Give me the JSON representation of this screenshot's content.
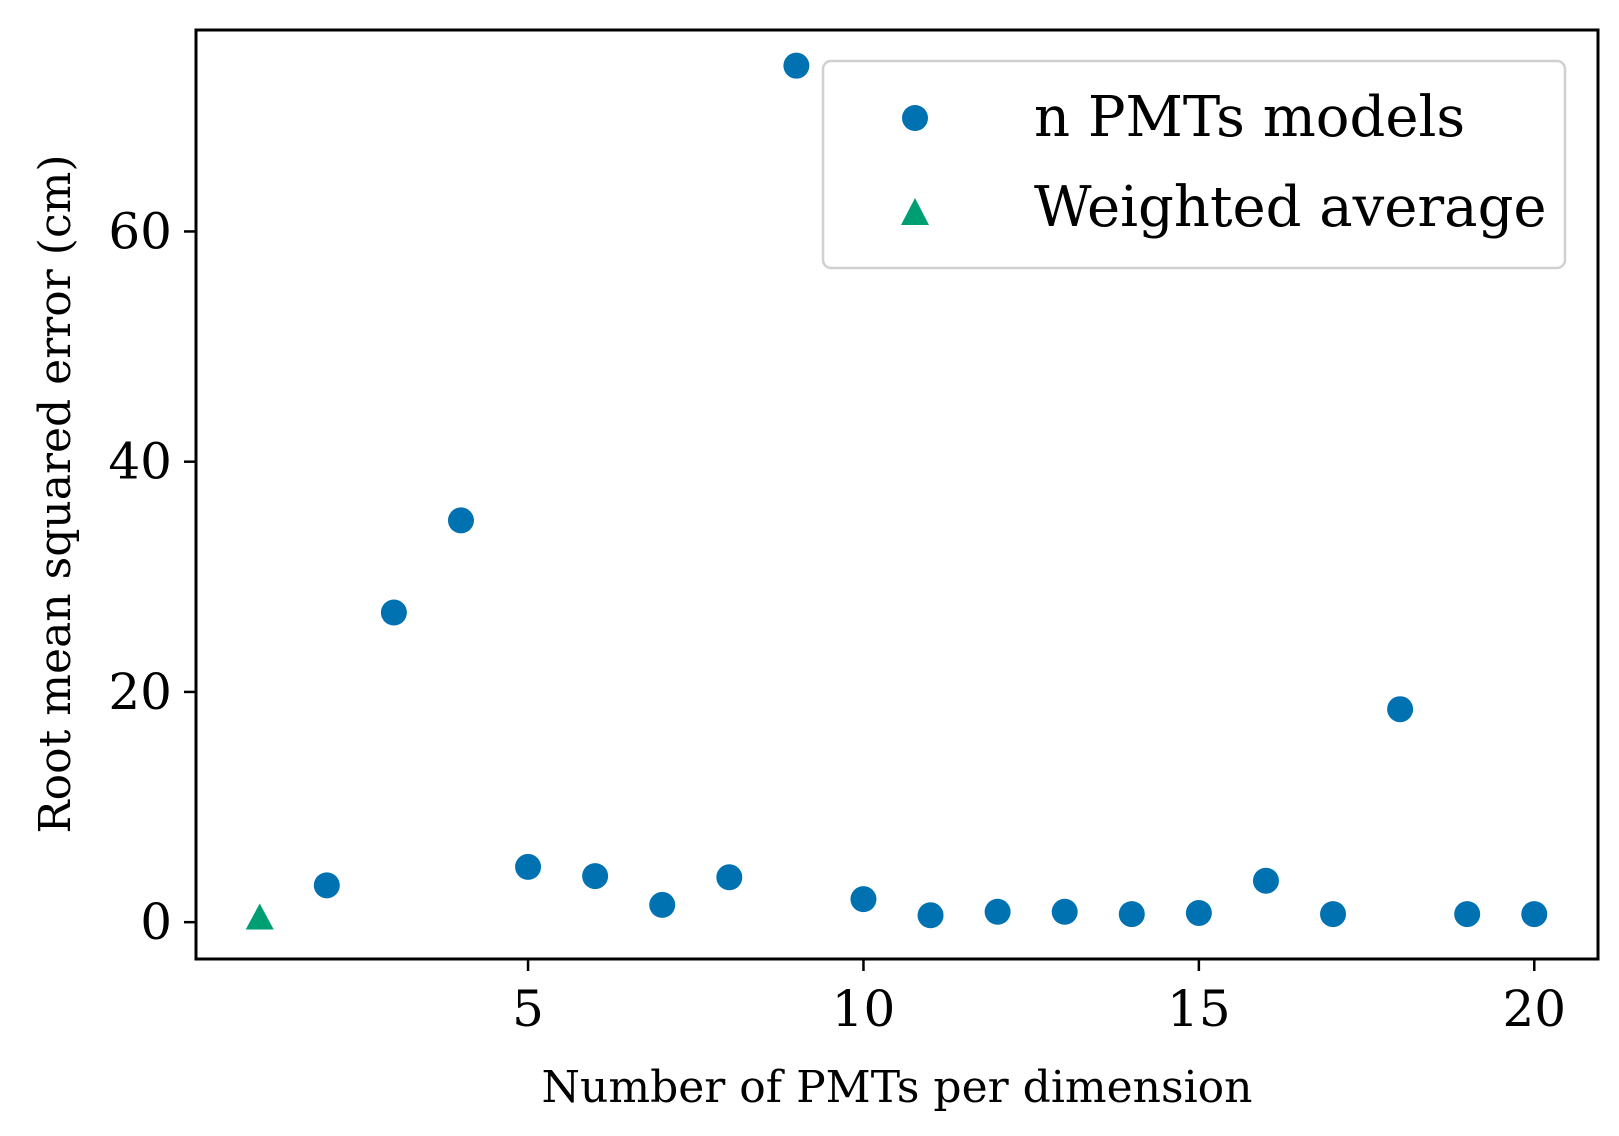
{
  "chart_data": {
    "type": "scatter",
    "title": "",
    "xlabel": "Number of PMTs per dimension",
    "ylabel": "Root mean squared error (cm)",
    "xlim": [
      0.05,
      20.95
    ],
    "ylim": [
      -3.2,
      77.5
    ],
    "xticks": [
      5,
      10,
      15,
      20
    ],
    "xtick_labels": [
      "5",
      "10",
      "15",
      "20"
    ],
    "yticks": [
      0,
      20,
      40,
      60
    ],
    "ytick_labels": [
      "0",
      "20",
      "40",
      "60"
    ],
    "grid": false,
    "legend_position": "top-right",
    "series": [
      {
        "name": "n PMTs models",
        "marker": "circle",
        "color": "#0072b2",
        "x": [
          2,
          3,
          4,
          5,
          6,
          7,
          8,
          9,
          10,
          11,
          12,
          13,
          14,
          15,
          16,
          17,
          18,
          19,
          20
        ],
        "y": [
          3.2,
          26.9,
          34.9,
          4.8,
          4.0,
          1.5,
          3.9,
          74.4,
          2.0,
          0.6,
          0.9,
          0.9,
          0.7,
          0.8,
          3.6,
          0.7,
          18.5,
          0.7,
          0.7
        ]
      },
      {
        "name": "Weighted average",
        "marker": "triangle",
        "color": "#009e73",
        "x": [
          1
        ],
        "y": [
          0.4
        ]
      }
    ]
  }
}
